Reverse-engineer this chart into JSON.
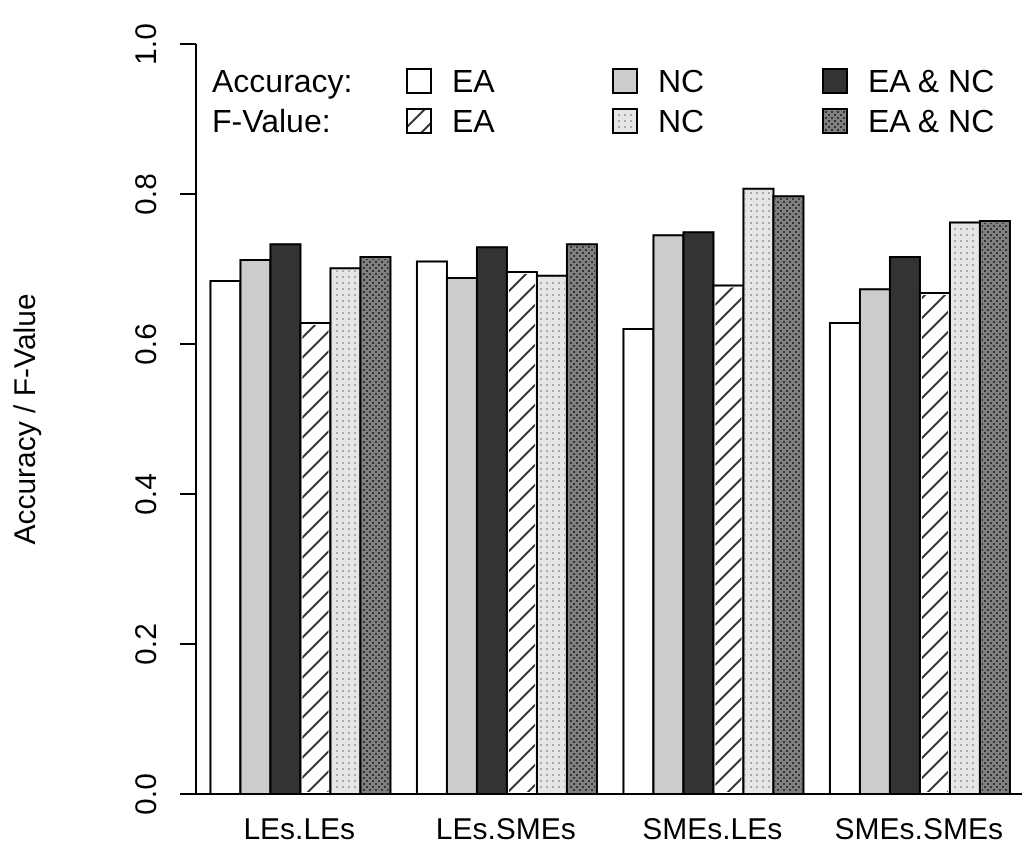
{
  "chart_data": {
    "type": "bar",
    "ylabel": "Accuracy / F-Value",
    "categories": [
      "LEs.LEs",
      "LEs.SMEs",
      "SMEs.LEs",
      "SMEs.SMEs"
    ],
    "series": [
      {
        "name": "EA",
        "color": "#ffffff",
        "values": [
          0.684,
          0.71,
          0.62,
          0.628
        ]
      },
      {
        "name": "NC",
        "color": "#cccccc",
        "values": [
          0.712,
          0.688,
          0.745,
          0.673
        ]
      },
      {
        "name": "EA & NC",
        "color": "#333333",
        "values": [
          0.733,
          0.729,
          0.749,
          0.716
        ]
      },
      {
        "name": "EA",
        "color": "#ffffff",
        "values": [
          0.628,
          0.696,
          0.678,
          0.668
        ]
      },
      {
        "name": "NC",
        "color": "#e6e6e6",
        "values": [
          0.701,
          0.691,
          0.807,
          0.762
        ]
      },
      {
        "name": "EA & NC",
        "color": "#808080",
        "values": [
          0.716,
          0.733,
          0.797,
          0.764
        ]
      }
    ],
    "annotations": [
      "Accuracy:",
      "F-Value:"
    ],
    "ylim": [
      0,
      1
    ],
    "yticks": [
      {
        "value": 0,
        "label": "0.0"
      },
      0.2,
      0.4,
      0.6,
      0.8,
      {
        "value": 1,
        "label": "1.0"
      }
    ],
    "legend": "top",
    "grid": false
  }
}
